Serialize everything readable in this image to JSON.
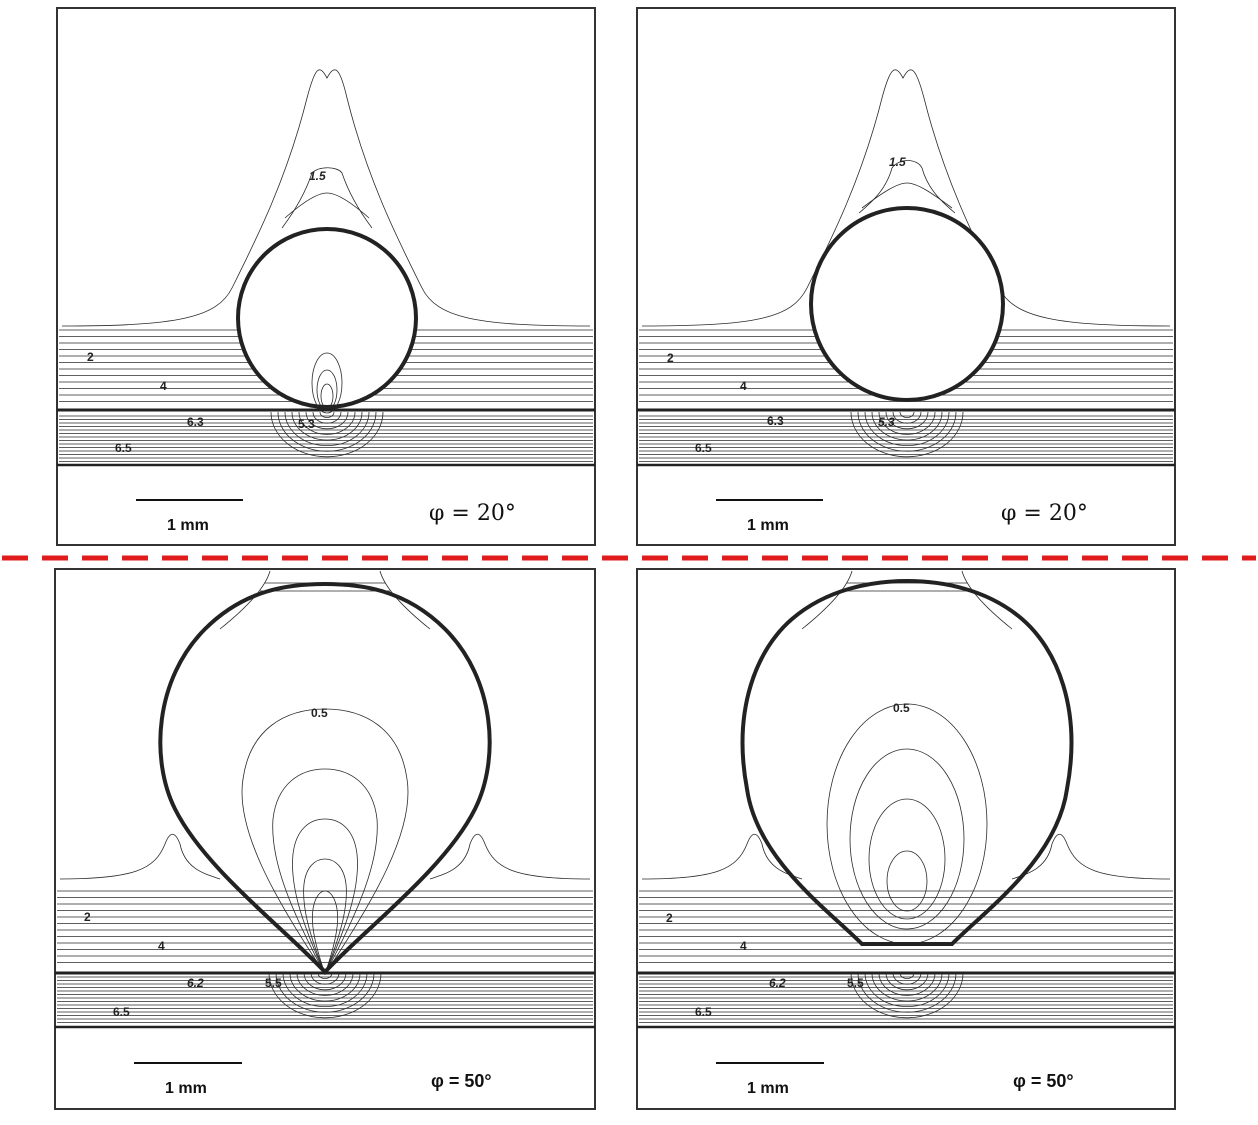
{
  "panels": [
    {
      "id": "top-left",
      "scale_bar_label": "1 mm",
      "angle_label": "φ = 20°",
      "contour_labels": [
        "1.5",
        "2",
        "4",
        "6.3",
        "5.3",
        "6.5"
      ]
    },
    {
      "id": "top-right",
      "scale_bar_label": "1 mm",
      "angle_label": "φ = 20°",
      "contour_labels": [
        "1.5",
        "2",
        "4",
        "6.3",
        "5.3",
        "6.5"
      ]
    },
    {
      "id": "bottom-left",
      "scale_bar_label": "1 mm",
      "angle_label": "φ = 50°",
      "contour_labels": [
        "0.5",
        "2",
        "4",
        "6.2",
        "5.5",
        "6.5"
      ]
    },
    {
      "id": "bottom-right",
      "scale_bar_label": "1 mm",
      "angle_label": "φ = 50°",
      "contour_labels": [
        "0.5",
        "2",
        "4",
        "6.2",
        "5.5",
        "6.5"
      ]
    }
  ],
  "colors": {
    "separator": "#e01b1b",
    "frame": "#333333",
    "contour": "#2a2a2a"
  }
}
